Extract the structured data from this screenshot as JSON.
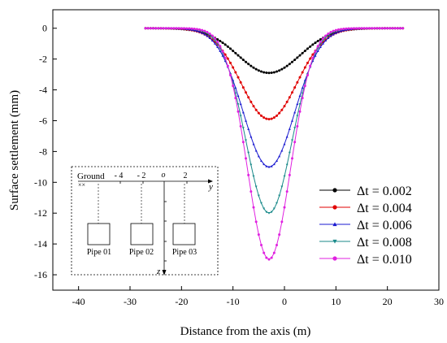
{
  "chart_data": {
    "type": "line",
    "xlabel": "Distance from the axis (m)",
    "ylabel": "Surface settlement (mm)",
    "xlim": [
      -45,
      30
    ],
    "ylim": [
      -17,
      1.2
    ],
    "x_ticks": [
      -40,
      -30,
      -20,
      -10,
      0,
      10,
      20,
      30
    ],
    "y_ticks": [
      0,
      -2,
      -4,
      -6,
      -8,
      -10,
      -12,
      -14,
      -16
    ],
    "x_tick_labels": [
      "-40",
      "-30",
      "-20",
      "-10",
      "0",
      "10",
      "20",
      "30"
    ],
    "y_tick_labels": [
      "0",
      "-2",
      "-4",
      "-6",
      "-8",
      "-10",
      "-12",
      "-14",
      "-16"
    ],
    "x_range_points": [
      -27,
      23
    ],
    "x_step": 0.5,
    "center": -3,
    "legend_position": "right-middle",
    "series": [
      {
        "name": "Δt = 0.002",
        "legend_prefix": "Δt",
        "legend_value": "0.002",
        "peak": -2.9,
        "sigma": 6.0,
        "color": "#000000",
        "marker": "circle"
      },
      {
        "name": "Δt = 0.004",
        "legend_prefix": "Δt",
        "legend_value": "0.004",
        "peak": -5.9,
        "sigma": 5.4,
        "color": "#e00000",
        "marker": "circle"
      },
      {
        "name": "Δt = 0.006",
        "legend_prefix": "Δt",
        "legend_value": "0.006",
        "peak": -9.0,
        "sigma": 5.0,
        "color": "#1a1ad0",
        "marker": "triangle-up"
      },
      {
        "name": "Δt = 0.008",
        "legend_prefix": "Δt",
        "legend_value": "0.008",
        "peak": -12.0,
        "sigma": 4.5,
        "color": "#1a8a8a",
        "marker": "triangle-down"
      },
      {
        "name": "Δt = 0.010",
        "legend_prefix": "Δt",
        "legend_value": "0.010",
        "peak": -15.0,
        "sigma": 4.2,
        "color": "#e020e0",
        "marker": "circle"
      }
    ]
  },
  "inset": {
    "ground_label": "Ground",
    "axis_tick_labels": [
      "- 4",
      "- 2",
      "o",
      "2"
    ],
    "y_axis_label": "y",
    "z_axis_label": "z",
    "pipes": [
      "Pipe 01",
      "Pipe 02",
      "Pipe 03"
    ]
  }
}
